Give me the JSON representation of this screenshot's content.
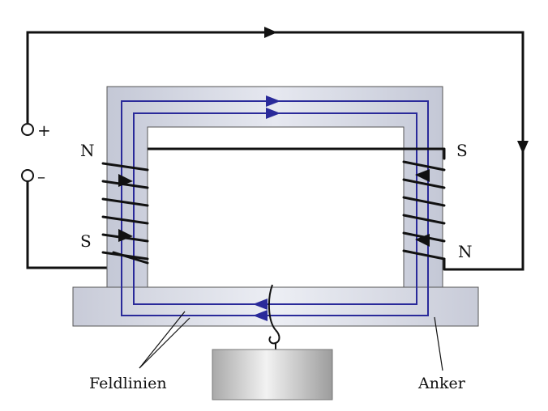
{
  "labels": {
    "plus": "+",
    "minus": "–",
    "left_top_pole": "N",
    "left_bottom_pole": "S",
    "right_top_pole": "S",
    "right_bottom_pole": "N",
    "field_lines": "Feldlinien",
    "armature": "Anker"
  },
  "colors": {
    "iron_core": "#c9ccd9",
    "field_line": "#2a2a9a",
    "wire": "#111111",
    "weight": "#b8b8b8"
  },
  "icons": {
    "terminal": "terminal-circle-icon",
    "arrow": "arrowhead-icon"
  }
}
